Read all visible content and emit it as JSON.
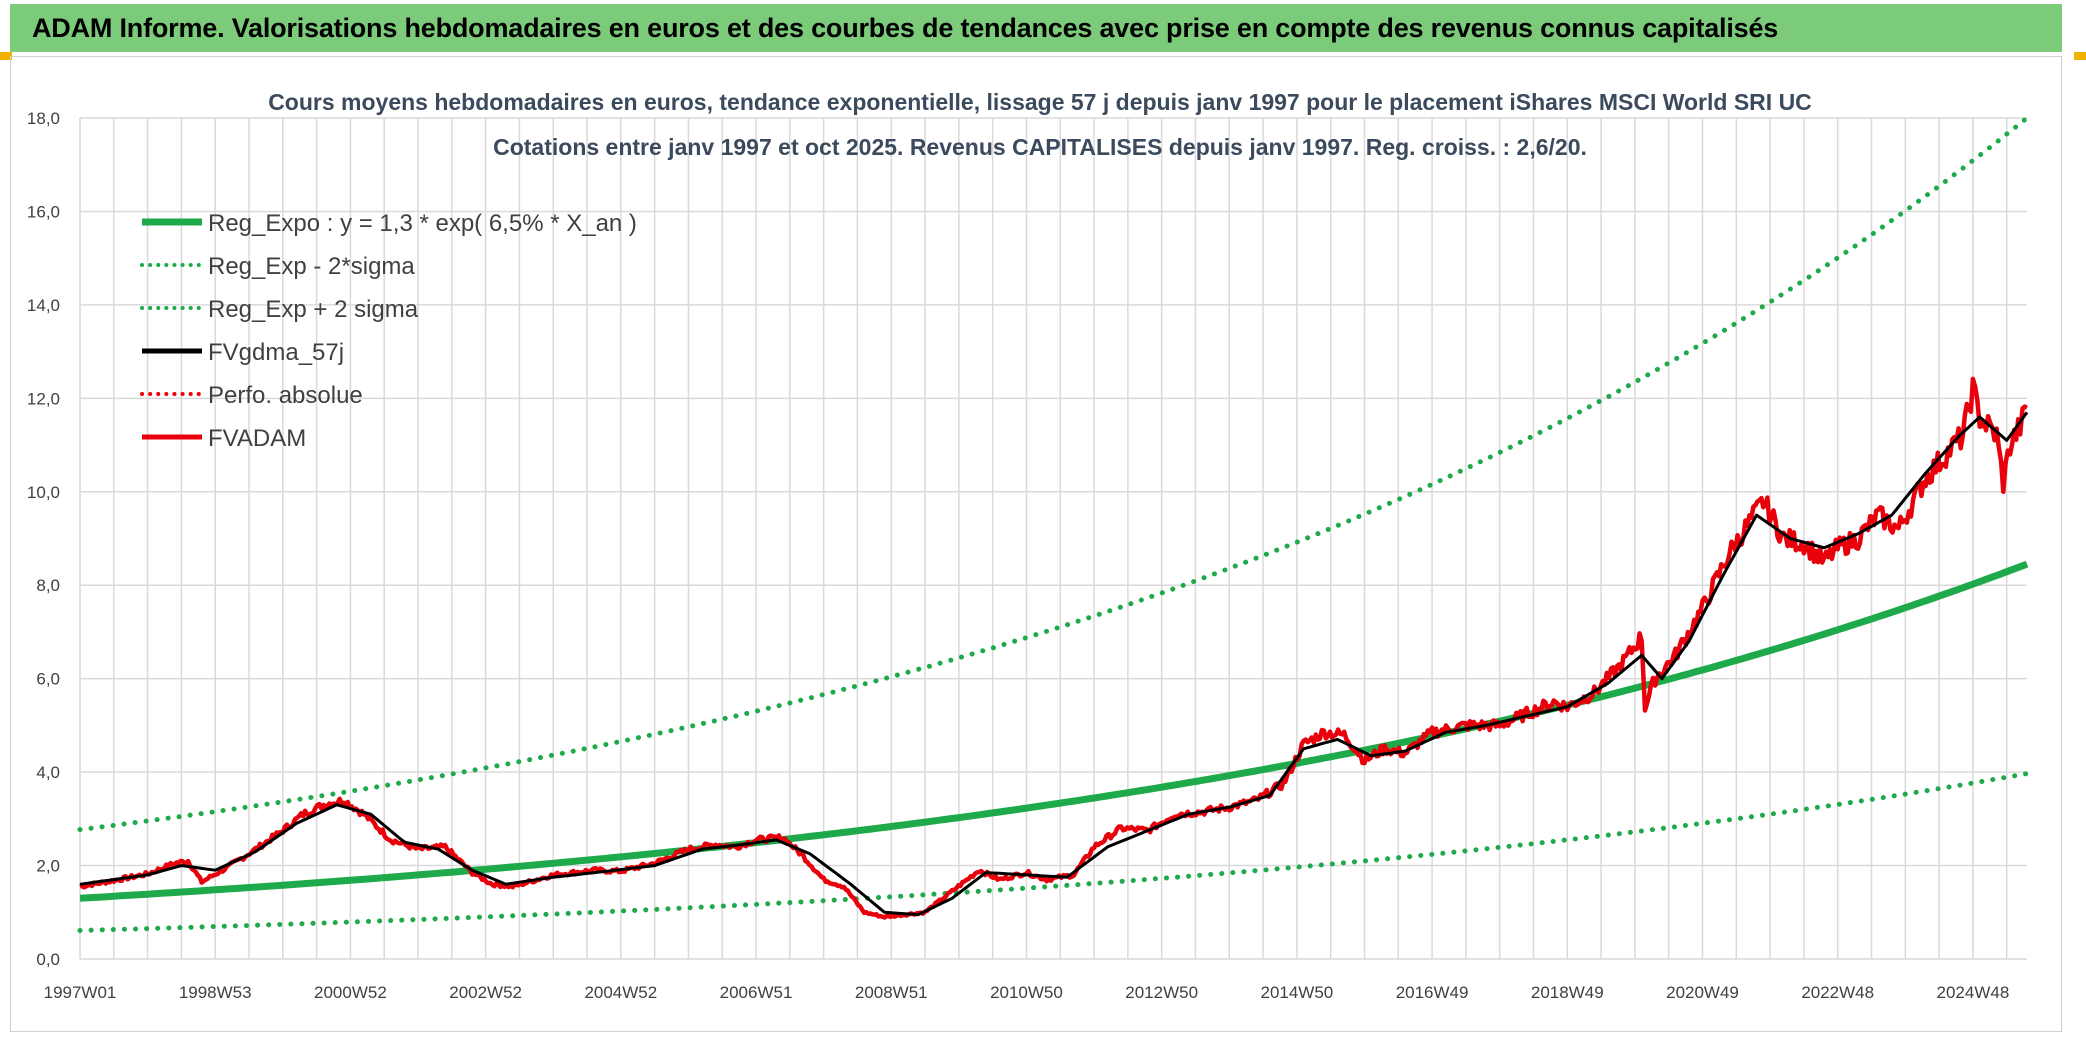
{
  "header": {
    "title": "ADAM Informe. Valorisations hebdomadaires en euros et des courbes de tendances avec prise en compte des revenus connus capitalisés"
  },
  "chart_data": {
    "type": "line",
    "title_line1": "Cours moyens hebdomadaires en euros, tendance exponentielle, lissage 57 j depuis janv 1997 pour le placement iShares MSCI World SRI UC",
    "title_line2": "Cotations entre janv 1997 et oct 2025. Revenus CAPITALISES depuis janv 1997. Reg. croiss. : 2,6/20.",
    "ylim": [
      0,
      18
    ],
    "xlim": [
      1997.0,
      2025.8
    ],
    "y_ticks": [
      "0,0",
      "2,0",
      "4,0",
      "6,0",
      "8,0",
      "10,0",
      "12,0",
      "14,0",
      "16,0",
      "18,0"
    ],
    "x_ticks": [
      {
        "label": "1997W01",
        "x": 1997.0
      },
      {
        "label": "1998W53",
        "x": 1999.0
      },
      {
        "label": "2000W52",
        "x": 2001.0
      },
      {
        "label": "2002W52",
        "x": 2003.0
      },
      {
        "label": "2004W52",
        "x": 2005.0
      },
      {
        "label": "2006W51",
        "x": 2007.0
      },
      {
        "label": "2008W51",
        "x": 2009.0
      },
      {
        "label": "2010W50",
        "x": 2011.0
      },
      {
        "label": "2012W50",
        "x": 2013.0
      },
      {
        "label": "2014W50",
        "x": 2015.0
      },
      {
        "label": "2016W49",
        "x": 2017.0
      },
      {
        "label": "2018W49",
        "x": 2019.0
      },
      {
        "label": "2020W49",
        "x": 2021.0
      },
      {
        "label": "2022W48",
        "x": 2023.0
      },
      {
        "label": "2024W48",
        "x": 2025.0
      }
    ],
    "regression": {
      "a": 1.3,
      "rate": 0.065,
      "sigma_factor": 2.13
    },
    "legend": [
      {
        "name": "Reg_Expo : y = 1,3 * exp( 6,5% *  X_an )",
        "color": "#1eaa4b",
        "style": "solid-thick"
      },
      {
        "name": "Reg_Exp - 2*sigma",
        "color": "#1eaa4b",
        "style": "dotted"
      },
      {
        "name": "Reg_Exp + 2 sigma",
        "color": "#1eaa4b",
        "style": "dotted"
      },
      {
        "name": "FVgdma_57j",
        "color": "#000000",
        "style": "solid"
      },
      {
        "name": "Perfo. absolue",
        "color": "#e8000b",
        "style": "dotted"
      },
      {
        "name": "FVADAM",
        "color": "#e8000b",
        "style": "solid"
      }
    ],
    "fvadam_series": {
      "x": [
        1997.0,
        1997.5,
        1998.0,
        1998.4,
        1998.6,
        1998.8,
        1999.2,
        1999.6,
        2000.0,
        2000.3,
        2000.6,
        2000.9,
        2001.2,
        2001.6,
        2002.0,
        2002.4,
        2002.8,
        2003.1,
        2003.4,
        2004.0,
        2004.6,
        2005.0,
        2005.5,
        2006.0,
        2006.4,
        2006.7,
        2007.0,
        2007.4,
        2007.7,
        2008.0,
        2008.3,
        2008.6,
        2008.9,
        2009.2,
        2009.5,
        2009.9,
        2010.3,
        2010.6,
        2011.0,
        2011.3,
        2011.7,
        2012.0,
        2012.4,
        2012.8,
        2013.2,
        2013.6,
        2014.0,
        2014.4,
        2014.8,
        2015.1,
        2015.4,
        2015.7,
        2016.0,
        2016.3,
        2016.6,
        2017.0,
        2017.5,
        2018.0,
        2018.4,
        2018.8,
        2019.0,
        2019.4,
        2019.8,
        2020.1,
        2020.15,
        2020.3,
        2020.6,
        2021.0,
        2021.4,
        2021.9,
        2022.2,
        2022.5,
        2022.8,
        2023.0,
        2023.3,
        2023.6,
        2023.9,
        2024.3,
        2024.6,
        2024.85,
        2025.0,
        2025.1,
        2025.35,
        2025.45,
        2025.55,
        2025.7,
        2025.8
      ],
      "y": [
        1.55,
        1.68,
        1.82,
        2.05,
        2.1,
        1.65,
        1.98,
        2.35,
        2.75,
        3.1,
        3.3,
        3.4,
        3.1,
        2.55,
        2.35,
        2.4,
        1.85,
        1.6,
        1.55,
        1.8,
        1.9,
        1.88,
        2.05,
        2.35,
        2.45,
        2.4,
        2.55,
        2.6,
        2.2,
        1.7,
        1.55,
        1.0,
        0.9,
        0.95,
        1.0,
        1.45,
        1.9,
        1.7,
        1.85,
        1.7,
        1.8,
        2.4,
        2.8,
        2.75,
        3.1,
        3.15,
        3.25,
        3.4,
        3.75,
        4.6,
        4.85,
        4.8,
        4.25,
        4.5,
        4.4,
        4.85,
        5.0,
        5.0,
        5.25,
        5.5,
        5.4,
        5.7,
        6.3,
        6.9,
        5.4,
        6.0,
        6.5,
        7.5,
        8.7,
        9.8,
        9.0,
        8.9,
        8.5,
        8.8,
        9.0,
        9.5,
        9.2,
        10.3,
        10.8,
        11.2,
        12.2,
        11.6,
        11.2,
        10.2,
        11.0,
        11.4,
        11.8
      ]
    },
    "fvgdma_series": {
      "x": [
        1997.0,
        1998.0,
        1998.5,
        1999.0,
        1999.6,
        2000.2,
        2000.8,
        2001.3,
        2001.8,
        2002.3,
        2002.8,
        2003.3,
        2004.0,
        2004.8,
        2005.5,
        2006.2,
        2006.8,
        2007.3,
        2007.8,
        2008.4,
        2008.9,
        2009.4,
        2009.9,
        2010.4,
        2011.0,
        2011.6,
        2012.2,
        2012.8,
        2013.4,
        2014.0,
        2014.6,
        2015.1,
        2015.6,
        2016.1,
        2016.6,
        2017.2,
        2017.8,
        2018.4,
        2019.0,
        2019.6,
        2020.1,
        2020.4,
        2020.8,
        2021.3,
        2021.8,
        2022.3,
        2022.8,
        2023.3,
        2023.8,
        2024.3,
        2024.8,
        2025.1,
        2025.5,
        2025.8
      ],
      "y": [
        1.6,
        1.8,
        2.0,
        1.9,
        2.3,
        2.9,
        3.3,
        3.1,
        2.5,
        2.35,
        1.9,
        1.6,
        1.75,
        1.88,
        2.0,
        2.35,
        2.45,
        2.55,
        2.25,
        1.6,
        1.0,
        0.95,
        1.3,
        1.85,
        1.8,
        1.75,
        2.4,
        2.75,
        3.1,
        3.25,
        3.5,
        4.5,
        4.7,
        4.35,
        4.45,
        4.85,
        5.0,
        5.2,
        5.4,
        5.9,
        6.5,
        6.0,
        6.8,
        8.2,
        9.5,
        9.0,
        8.8,
        9.1,
        9.5,
        10.4,
        11.2,
        11.6,
        11.1,
        11.7
      ]
    }
  }
}
